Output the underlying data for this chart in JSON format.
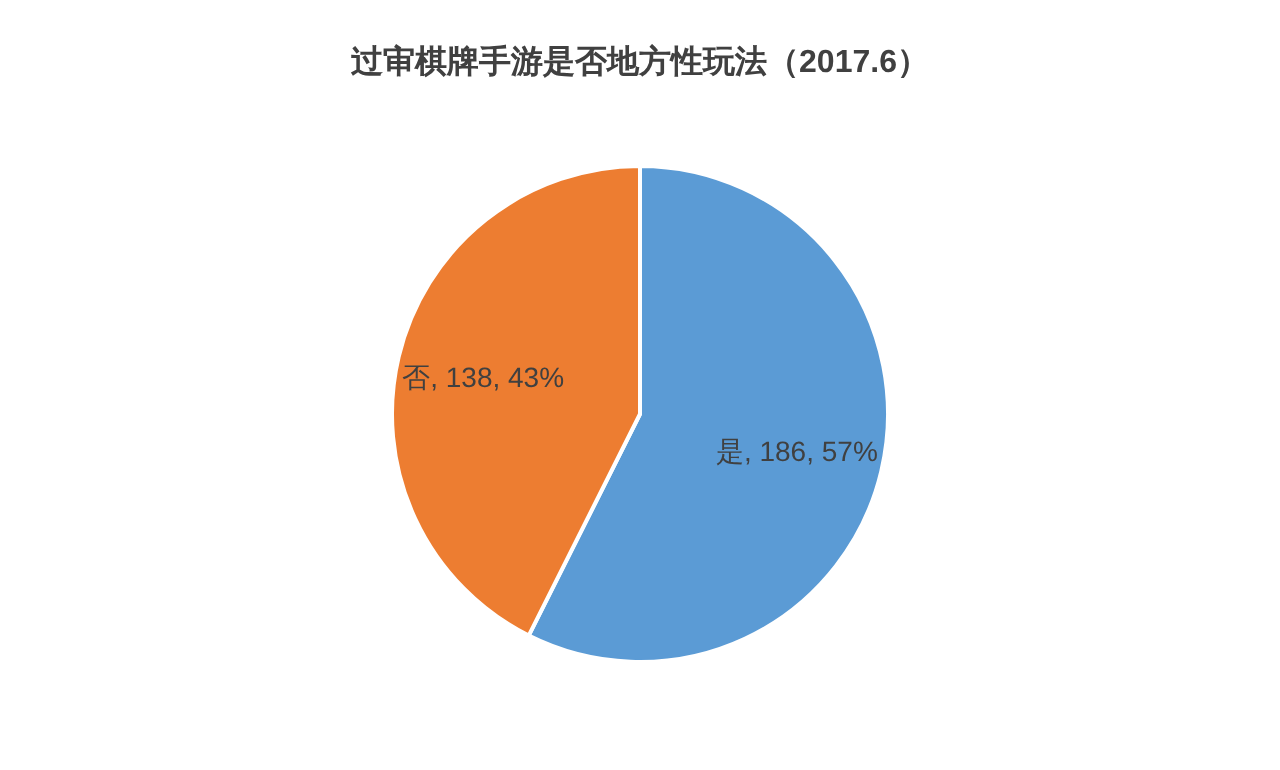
{
  "chart_data": {
    "type": "pie",
    "title": "过审棋牌手游是否地方性玩法（2017.6）",
    "categories": [
      "是",
      "否"
    ],
    "values": [
      186,
      138
    ],
    "colors": [
      "#5b9bd5",
      "#ed7d31"
    ],
    "value_labels": [
      ", 186, 57%",
      ", 138, 43%"
    ],
    "legend": false
  }
}
